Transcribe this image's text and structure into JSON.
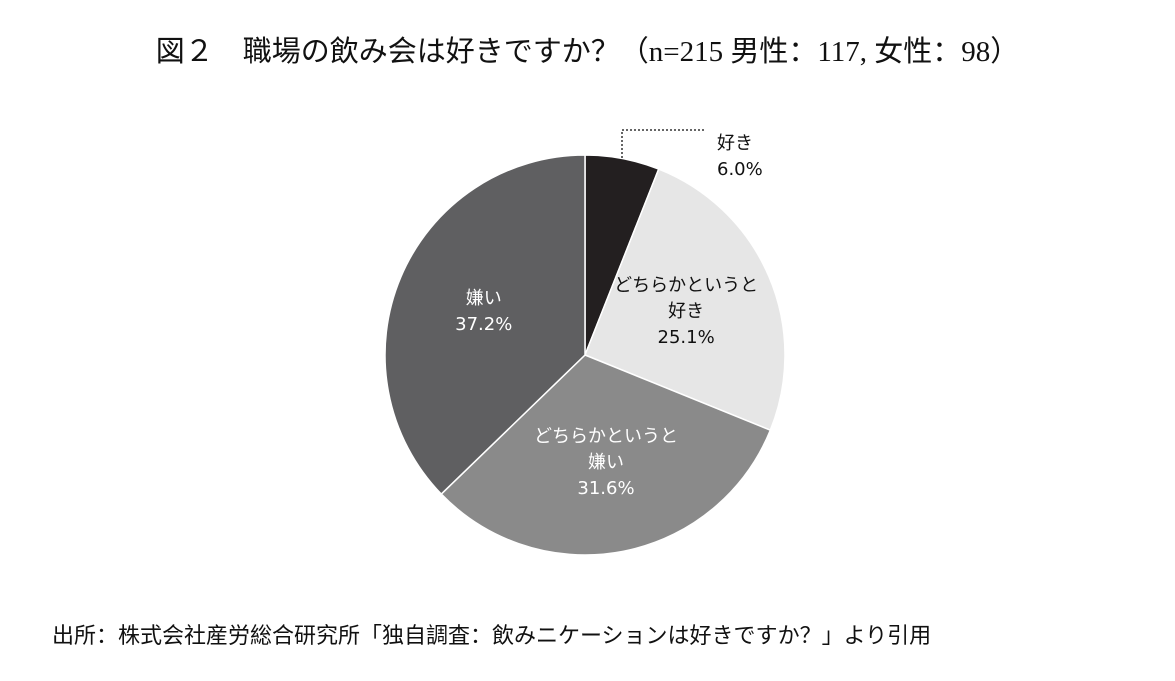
{
  "chart_data": {
    "type": "pie",
    "title": "図２　職場の飲み会は好きですか？（n=215 男性：117, 女性：98）",
    "source": "出所：株式会社産労総合研究所「独自調査：飲みニケーションは好きですか？」より引用",
    "categories": [
      "好き",
      "どちらかというと好き",
      "どちらかというと嫌い",
      "嫌い"
    ],
    "values": [
      6.0,
      25.1,
      31.6,
      37.2
    ],
    "value_labels": [
      "6.0%",
      "25.1%",
      "31.6%",
      "37.2%"
    ],
    "colors": [
      "#231f20",
      "#e6e6e6",
      "#8a8a8a",
      "#5f5f61"
    ]
  }
}
